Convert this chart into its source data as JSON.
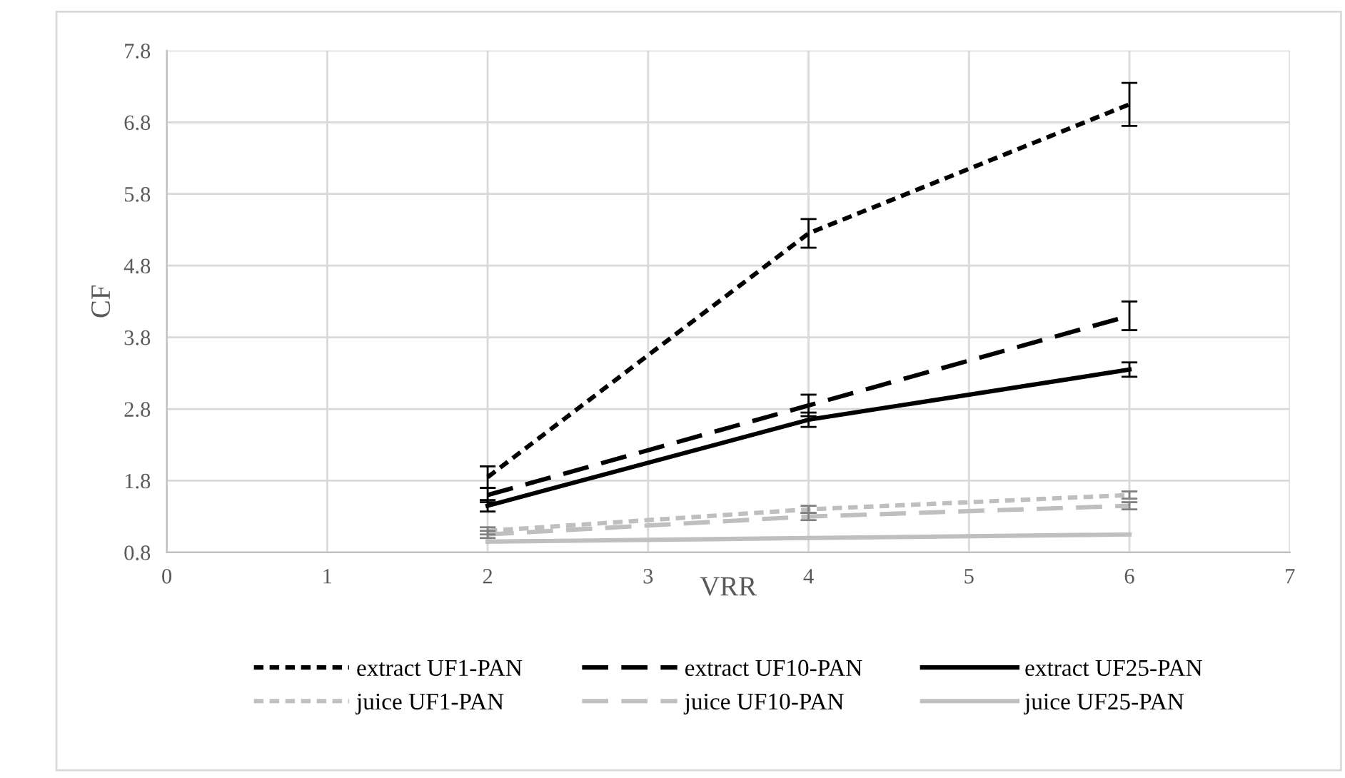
{
  "chart_data": {
    "type": "line",
    "xlabel": "VRR",
    "ylabel": "CF",
    "x": [
      2,
      4,
      6
    ],
    "xlim": [
      0,
      7
    ],
    "xticks": [
      0,
      1,
      2,
      3,
      4,
      5,
      6,
      7
    ],
    "ylim": [
      0.8,
      7.8
    ],
    "yticks": [
      0.8,
      1.8,
      2.8,
      3.8,
      4.8,
      5.8,
      6.8,
      7.8
    ],
    "grid": true,
    "legend": "bottom",
    "marker": "none",
    "series": [
      {
        "name": "extract UF1-PAN",
        "color": "#000000",
        "line_style": "dotted",
        "values": [
          1.85,
          5.25,
          7.05
        ],
        "errors": [
          0.15,
          0.2,
          0.3
        ]
      },
      {
        "name": "extract UF10-PAN",
        "color": "#000000",
        "line_style": "dashed",
        "values": [
          1.6,
          2.85,
          4.1
        ],
        "errors": [
          0.1,
          0.15,
          0.2
        ]
      },
      {
        "name": "extract UF25-PAN",
        "color": "#000000",
        "line_style": "solid",
        "values": [
          1.45,
          2.65,
          3.35
        ],
        "errors": [
          0.08,
          0.1,
          0.1
        ]
      },
      {
        "name": "juice UF1-PAN",
        "color": "#bfbfbf",
        "line_style": "dotted",
        "values": [
          1.1,
          1.4,
          1.6
        ],
        "errors": [
          0.05,
          0.05,
          0.05
        ]
      },
      {
        "name": "juice UF10-PAN",
        "color": "#bfbfbf",
        "line_style": "dashed",
        "values": [
          1.05,
          1.3,
          1.45
        ],
        "errors": [
          0.05,
          0.05,
          0.05
        ]
      },
      {
        "name": "juice UF25-PAN",
        "color": "#bfbfbf",
        "line_style": "solid",
        "values": [
          0.95,
          1.0,
          1.05
        ]
      }
    ]
  }
}
